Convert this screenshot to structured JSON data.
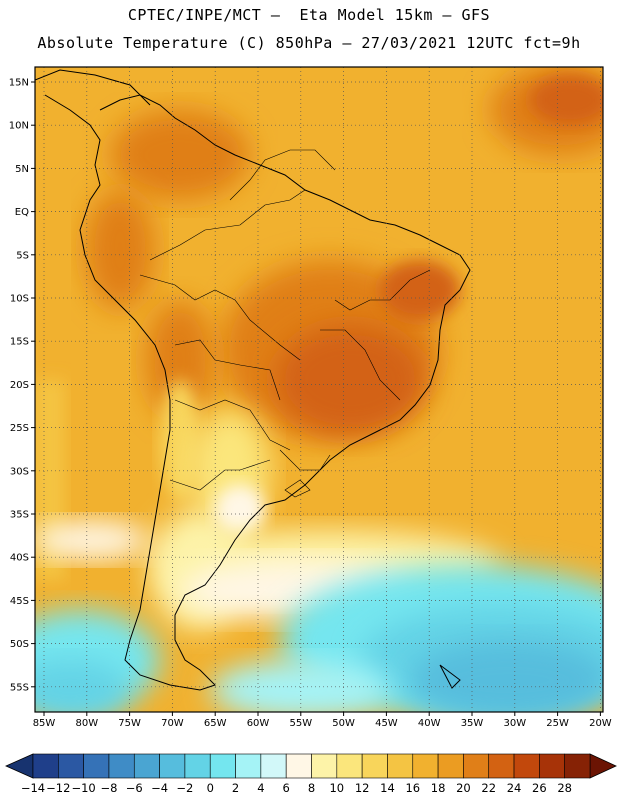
{
  "title_line1": "CPTEC/INPE/MCT –  Eta Model 15km – GFS",
  "title_line2": "Absolute Temperature (C) 850hPa – 27/03/2021 12UTC fct=9h",
  "lat_ticks": [
    "15N",
    "10N",
    "5N",
    "EQ",
    "5S",
    "10S",
    "15S",
    "20S",
    "25S",
    "30S",
    "35S",
    "40S",
    "45S",
    "50S",
    "55S"
  ],
  "lon_ticks": [
    "85W",
    "80W",
    "75W",
    "70W",
    "65W",
    "60W",
    "55W",
    "50W",
    "45W",
    "40W",
    "35W",
    "30W",
    "25W",
    "20W"
  ],
  "colorbar": {
    "labels": [
      "-14",
      "-12",
      "-10",
      "-8",
      "-6",
      "-4",
      "-2",
      "0",
      "2",
      "4",
      "6",
      "8",
      "10",
      "12",
      "14",
      "16",
      "18",
      "20",
      "22",
      "24",
      "26",
      "28"
    ],
    "colors": [
      "#1f3f8a",
      "#2b58a3",
      "#3572b7",
      "#3f8cc6",
      "#4aa5d2",
      "#56bddd",
      "#63d3e6",
      "#74e6ef",
      "#a5f3f6",
      "#d2f8f9",
      "#fff7e6",
      "#fdf3a8",
      "#fbe67c",
      "#f8d55b",
      "#f4c443",
      "#f1b12f",
      "#eb9c22",
      "#e07f18",
      "#d36212",
      "#c2480c",
      "#a73308",
      "#862205"
    ],
    "under_color": "#17336f",
    "over_color": "#6b1403"
  }
}
